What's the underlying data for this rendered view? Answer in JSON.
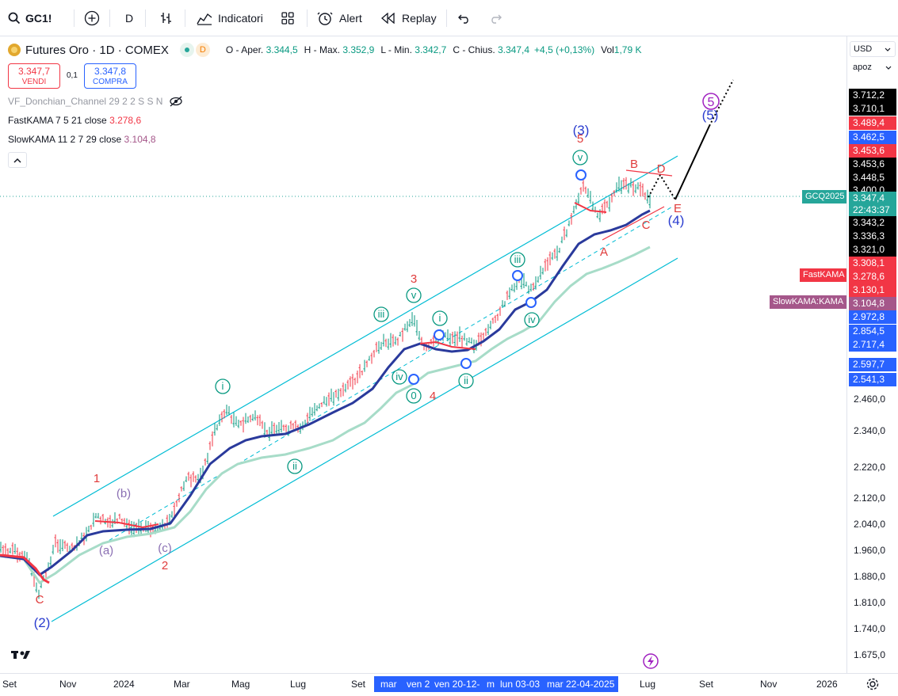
{
  "toolbar": {
    "symbol": "GC1!",
    "interval": "D",
    "indicators_label": "Indicatori",
    "alert_label": "Alert",
    "replay_label": "Replay"
  },
  "legend": {
    "title": "Futures Oro · 1D · COMEX",
    "badge": "D",
    "open_label": "O - Aper.",
    "open_value": "3.344,5",
    "high_label": "H - Max.",
    "high_value": "3.352,9",
    "low_label": "L - Min.",
    "low_value": "3.342,7",
    "close_label": "C - Chius.",
    "close_value": "3.347,4",
    "change_value": "+4,5 (+0,13%)",
    "vol_label": "Vol",
    "vol_value": "1,79 K",
    "sell_price": "3.347,7",
    "sell_label": "VENDI",
    "spread": "0,1",
    "buy_price": "3.347,8",
    "buy_label": "COMPRA",
    "donchian_label": "VF_Donchian_Channel 29 2 2 S S N",
    "fastkama_label": "FastKAMA 7 5 21 close",
    "fastkama_value": "3.278,6",
    "slowkama_label": "SlowKAMA 11 2 7 29 close",
    "slowkama_value": "3.104,8"
  },
  "price_axis": {
    "currency": "USD",
    "mode": "apoz",
    "labels": [
      "2.460,0",
      "2.340,0",
      "2.220,0",
      "2.120,0",
      "2.040,0",
      "1.960,0",
      "1.880,0",
      "1.810,0",
      "1.740,0",
      "1.675,0"
    ],
    "tags": [
      {
        "text": "3.712,2",
        "color": "#000000"
      },
      {
        "text": "3.710,1",
        "color": "#000000"
      },
      {
        "text": "3.489,4",
        "color": "#f23645"
      },
      {
        "text": "3.462,5",
        "color": "#2962ff"
      },
      {
        "text": "3.453,6",
        "color": "#f23645"
      },
      {
        "text": "3.453,6",
        "color": "#000000"
      },
      {
        "text": "3.448,5",
        "color": "#000000"
      },
      {
        "text": "3.400,0",
        "color": "#000000"
      },
      {
        "text": "3.347,4",
        "color": "#26a69a"
      },
      {
        "text": "22:43:37",
        "color": "#26a69a"
      },
      {
        "text": "3.343,2",
        "color": "#000000"
      },
      {
        "text": "3.336,3",
        "color": "#000000"
      },
      {
        "text": "3.321,0",
        "color": "#000000"
      },
      {
        "text": "3.308,1",
        "color": "#f23645"
      },
      {
        "text": "3.278,6",
        "color": "#f23645"
      },
      {
        "text": "3.130,1",
        "color": "#f23645"
      },
      {
        "text": "3.104,8",
        "color": "#a5578a"
      },
      {
        "text": "2.972,8",
        "color": "#2962ff"
      },
      {
        "text": "2.854,5",
        "color": "#2962ff"
      },
      {
        "text": "2.717,4",
        "color": "#2962ff"
      },
      {
        "text": "2.597,7",
        "color": "#2962ff"
      },
      {
        "text": "2.541,3",
        "color": "#2962ff"
      }
    ],
    "side_labels": {
      "gcq": "GCQ2025",
      "fastkama": "FastKAMA",
      "slowkama": "SlowKAMA:KAMA"
    }
  },
  "time_axis": {
    "labels": [
      "Set",
      "Nov",
      "2024",
      "Mar",
      "Mag",
      "Lug",
      "Set",
      "Lug",
      "Set",
      "Nov",
      "2026"
    ],
    "highlight": [
      "mar",
      "ven 2",
      "ven 20-12-",
      "m",
      "lun 03-03",
      "mar 22-04-2025"
    ]
  },
  "waves": {
    "red": [
      "1",
      "2",
      "3",
      "4",
      "5",
      "A",
      "B",
      "C",
      "D",
      "E",
      "C"
    ],
    "blue": [
      "(2)",
      "(3)",
      "(4)",
      "(5)",
      "0"
    ],
    "purple": [
      "(b)",
      "(a)",
      "(c)",
      "5"
    ],
    "green": [
      "i",
      "ii",
      "iii",
      "iv",
      "v",
      "i",
      "ii",
      "iii",
      "iv",
      "v",
      "0"
    ]
  },
  "colors": {
    "up": "#089981",
    "down": "#f23645",
    "channel": "#00bcd4",
    "fastkama": "#2a3a9c",
    "slowkama": "#a7dcc8",
    "red_kama": "#f23645",
    "accent": "#2962ff"
  }
}
